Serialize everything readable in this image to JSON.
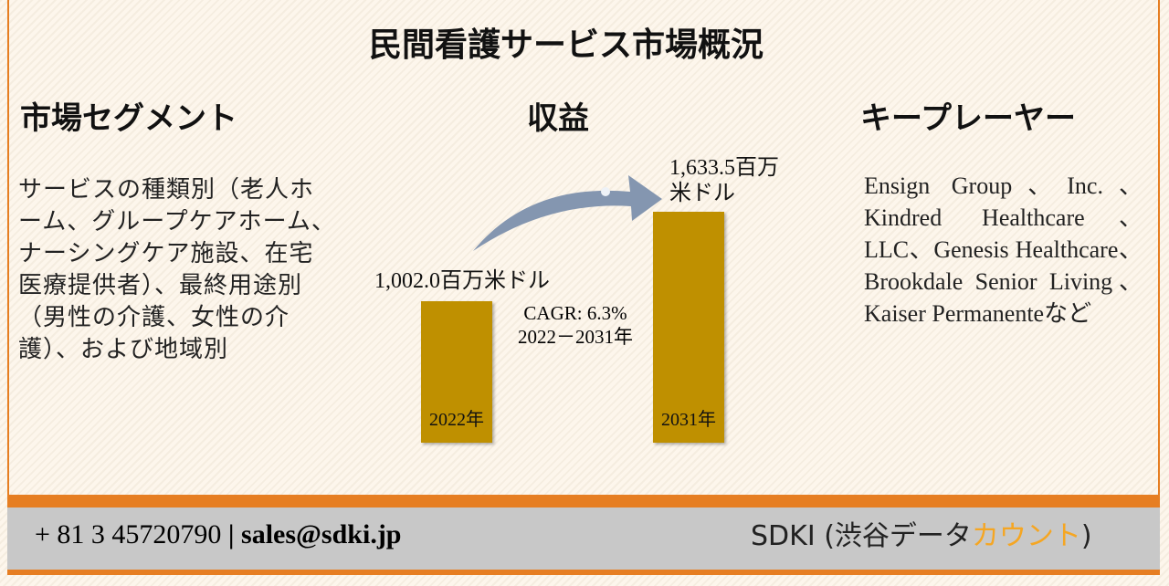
{
  "header": {
    "title": "民間看護サービス市場概況"
  },
  "segments": {
    "heading": "市場セグメント",
    "text": "サービスの種類別（老人ホーム、グループケアホーム、ナーシングケア施設、在宅医療提供者）、最終用途別（男性の介護、女性の介護）、および地域別"
  },
  "revenue": {
    "heading": "収益",
    "cagr": "CAGR: 6.3%",
    "period": "2022－2031年"
  },
  "chart_data": {
    "type": "bar",
    "categories": [
      "2022年",
      "2031年"
    ],
    "values": [
      1002.0,
      1633.5
    ],
    "value_labels": [
      "1,002.0百万米ドル",
      "1,633.5百万米ドル"
    ],
    "color": "#bf9000"
  },
  "players": {
    "heading": "キープレーヤー",
    "text": "Ensign Group、Inc.、Kindred Healthcare、LLC、Genesis Healthcare、Brookdale Senior Living、Kaiser Permanenteなど"
  },
  "footer": {
    "phone": "+ 81 3 45720790",
    "separator": "|",
    "email": "sales@sdki.jp",
    "company": "SDKI (渋谷データ",
    "company_highlight": "カウント",
    "company_end": ")"
  }
}
